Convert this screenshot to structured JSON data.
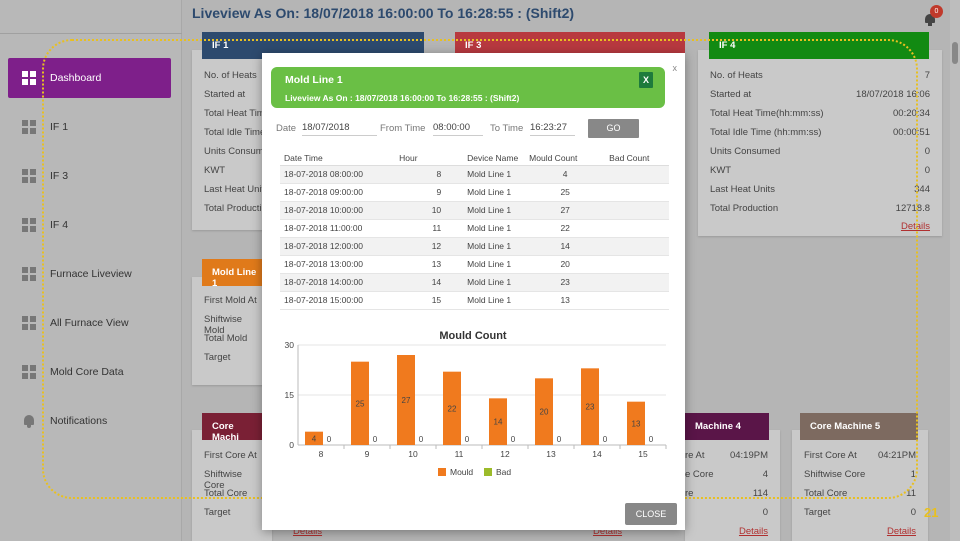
{
  "header": {
    "title": "Liveview As On: 18/07/2018 16:00:00 To 16:28:55    : (Shift2)",
    "notification_count": "0"
  },
  "sidebar": {
    "items": [
      {
        "label": "Dashboard"
      },
      {
        "label": "IF 1"
      },
      {
        "label": "IF 3"
      },
      {
        "label": "IF 4"
      },
      {
        "label": "Furnace Liveview"
      },
      {
        "label": "All Furnace View"
      },
      {
        "label": "Mold Core Data"
      },
      {
        "label": "Notifications"
      }
    ]
  },
  "cards": {
    "if1": {
      "title": "IF 1",
      "rows": [
        "No. of Heats",
        "Started at",
        "Total Heat Time",
        "Total Idle Time",
        "Units Consum",
        "KWT",
        "Last Heat Units",
        "Total Producti"
      ]
    },
    "if3": {
      "title": "IF 3"
    },
    "if4": {
      "title": "IF 4",
      "details": "Details",
      "rows": [
        {
          "label": "No. of Heats",
          "value": "7"
        },
        {
          "label": "Started at",
          "value": "18/07/2018 16:06"
        },
        {
          "label": "Total Heat Time(hh:mm:ss)",
          "value": "00:20:34"
        },
        {
          "label": "Total Idle Time (hh:mm:ss)",
          "value": "00:00:51"
        },
        {
          "label": "Units Consumed",
          "value": "0"
        },
        {
          "label": "KWT",
          "value": "0"
        },
        {
          "label": "Last Heat Units",
          "value": "344"
        },
        {
          "label": "Total Production",
          "value": "12718.8"
        }
      ]
    },
    "mold1": {
      "title": "Mold Line 1",
      "rows": [
        "First Mold At",
        "Shiftwise Mold",
        "Total Mold",
        "Target"
      ]
    },
    "core1": {
      "title": "Core Machi",
      "rows": [
        "First Core At",
        "Shiftwise Core",
        "Total Core",
        "Target"
      ],
      "details": "Details"
    },
    "core3": {
      "details": "Details"
    },
    "core4": {
      "title": "Machine 4",
      "details": "Details",
      "rows": [
        {
          "label": "re At",
          "value": "04:19PM"
        },
        {
          "label": "e Core",
          "value": "4"
        },
        {
          "label": "re",
          "value": "114"
        },
        {
          "label": "",
          "value": "0"
        }
      ]
    },
    "core5": {
      "title": "Core Machine 5",
      "details": "Details",
      "rows": [
        {
          "label": "First Core At",
          "value": "04:21PM"
        },
        {
          "label": "Shiftwise Core",
          "value": "1"
        },
        {
          "label": "Total Core",
          "value": "11"
        },
        {
          "label": "Target",
          "value": "0"
        }
      ]
    }
  },
  "slide_number": "21",
  "modal": {
    "title": "Mold Line 1",
    "subtitle": "Liveview As On : 18/07/2018 16:00:00 To  16:28:55 : (Shift2)",
    "excel_label": "X",
    "close_x": "x",
    "date_label": "Date",
    "date_value": "18/07/2018",
    "from_label": "From Time",
    "from_value": "08:00:00",
    "to_label": "To Time",
    "to_value": "16:23:27",
    "go_label": "GO",
    "close_label": "CLOSE",
    "table": {
      "headers": [
        "Date Time",
        "Hour",
        "Device Name",
        "Mould Count",
        "Bad Count"
      ],
      "rows": [
        [
          "18-07-2018 08:00:00",
          "8",
          "Mold Line 1",
          "4",
          ""
        ],
        [
          "18-07-2018 09:00:00",
          "9",
          "Mold Line 1",
          "25",
          ""
        ],
        [
          "18-07-2018 10:00:00",
          "10",
          "Mold Line 1",
          "27",
          ""
        ],
        [
          "18-07-2018 11:00:00",
          "11",
          "Mold Line 1",
          "22",
          ""
        ],
        [
          "18-07-2018 12:00:00",
          "12",
          "Mold Line 1",
          "14",
          ""
        ],
        [
          "18-07-2018 13:00:00",
          "13",
          "Mold Line 1",
          "20",
          ""
        ],
        [
          "18-07-2018 14:00:00",
          "14",
          "Mold Line 1",
          "23",
          ""
        ],
        [
          "18-07-2018 15:00:00",
          "15",
          "Mold Line 1",
          "13",
          ""
        ]
      ]
    }
  },
  "chart_data": {
    "type": "bar",
    "title": "Mould Count",
    "categories": [
      "8",
      "9",
      "10",
      "11",
      "12",
      "13",
      "14",
      "15"
    ],
    "series": [
      {
        "name": "Mould",
        "color": "#f07a1e",
        "values": [
          4,
          25,
          27,
          22,
          14,
          20,
          23,
          13
        ]
      },
      {
        "name": "Bad",
        "color": "#9cbb2a",
        "values": [
          0,
          0,
          0,
          0,
          0,
          0,
          0,
          0
        ]
      }
    ],
    "ylim": [
      0,
      30
    ],
    "yticks": [
      "0",
      "15",
      "30"
    ],
    "legend": "bottom"
  }
}
